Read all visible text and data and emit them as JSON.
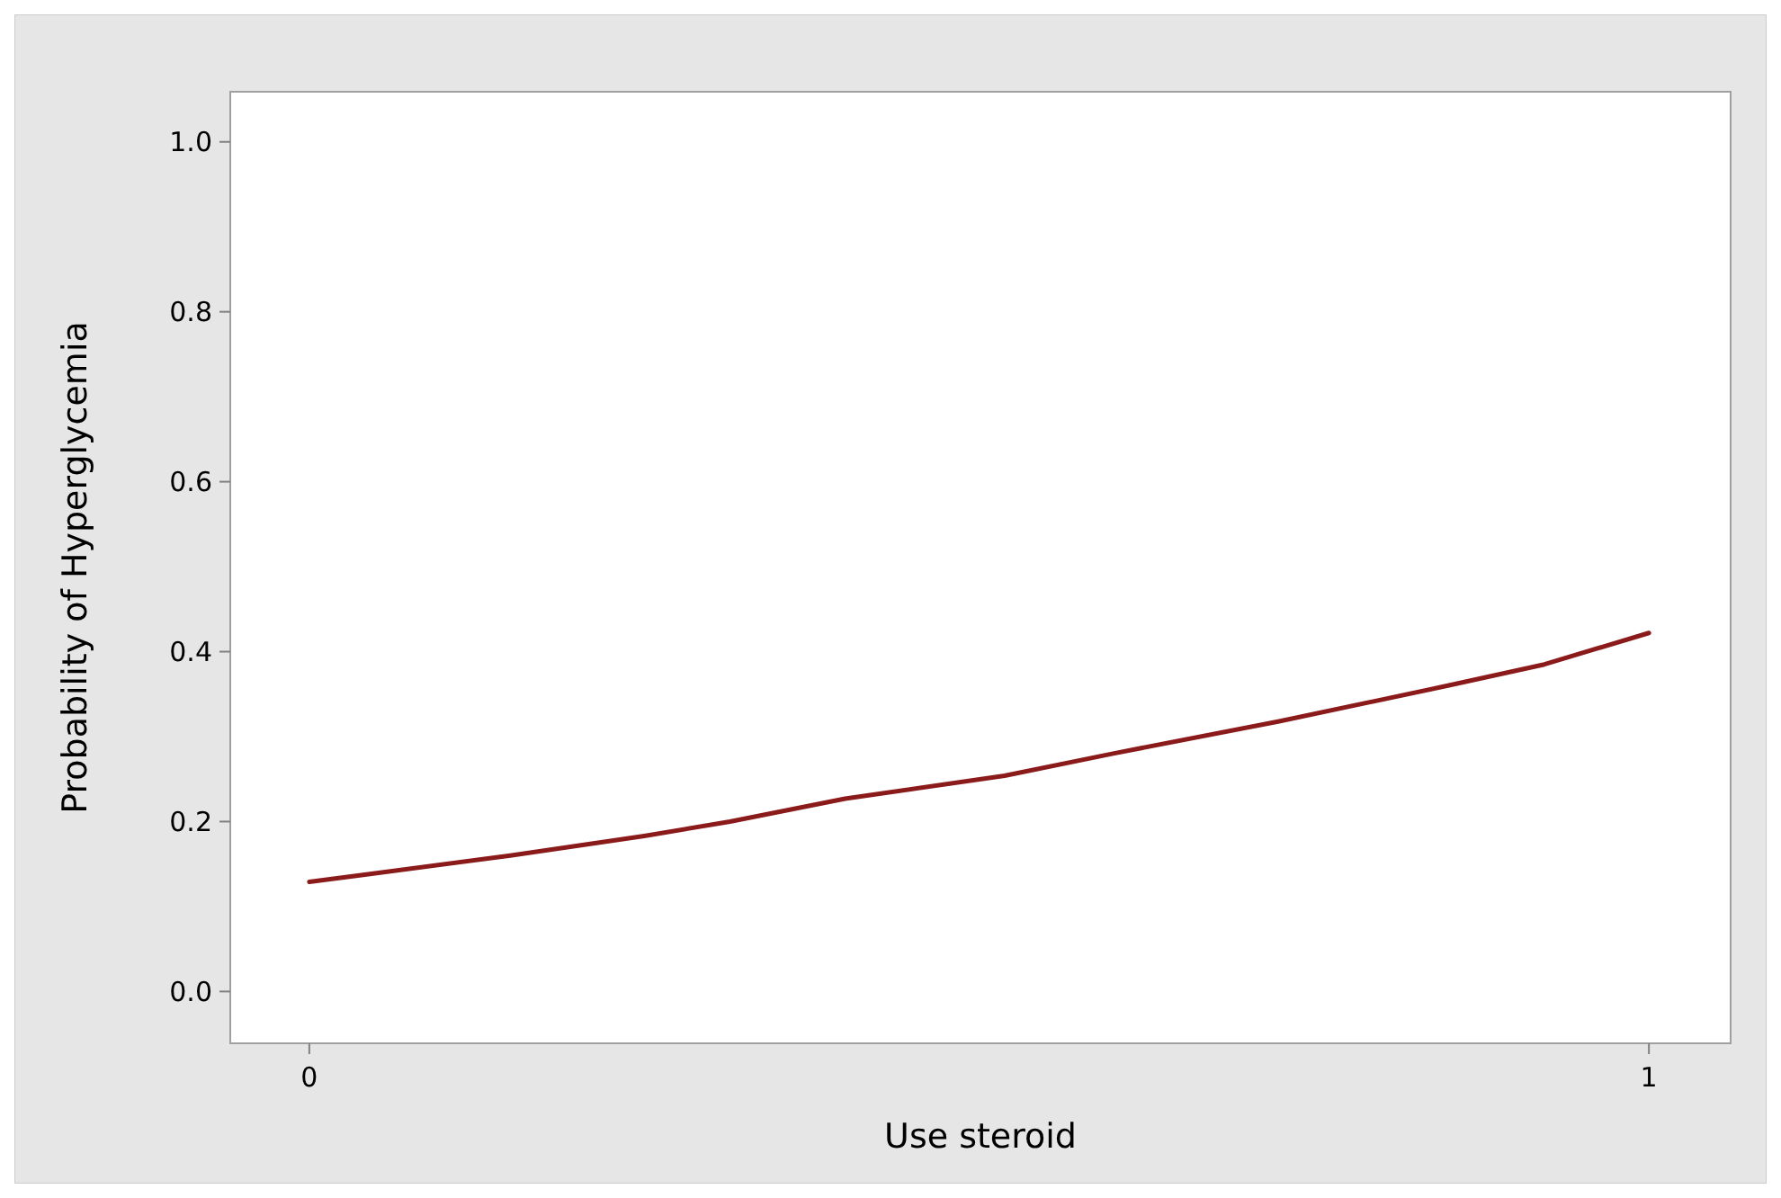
{
  "chart_data": {
    "type": "line",
    "xlabel": "Use steroid",
    "ylabel": "Probability of Hyperglycemia",
    "x": [
      0,
      0.044,
      0.15,
      0.25,
      0.314,
      0.4,
      0.519,
      0.6,
      0.724,
      0.85,
      0.922,
      1
    ],
    "series": [
      {
        "color": "#8b1a1a",
        "values": [
          0.129,
          0.138,
          0.16,
          0.183,
          0.2,
          0.227,
          0.254,
          0.28,
          0.318,
          0.36,
          0.385,
          0.422
        ]
      }
    ],
    "xlim": [
      -0.059,
      1.061
    ],
    "ylim": [
      -0.061,
      1.059
    ],
    "xticks": [
      0,
      1
    ],
    "yticks": [
      {
        "value": 0,
        "label": "0.0"
      },
      {
        "value": 0.2,
        "label": "0.2"
      },
      {
        "value": 0.4,
        "label": "0.4"
      },
      {
        "value": 0.6,
        "label": "0.6"
      },
      {
        "value": 0.8,
        "label": "0.8"
      },
      {
        "value": 1,
        "label": "1.0"
      }
    ],
    "grid": false,
    "line_style": "solid",
    "marker": "none"
  }
}
